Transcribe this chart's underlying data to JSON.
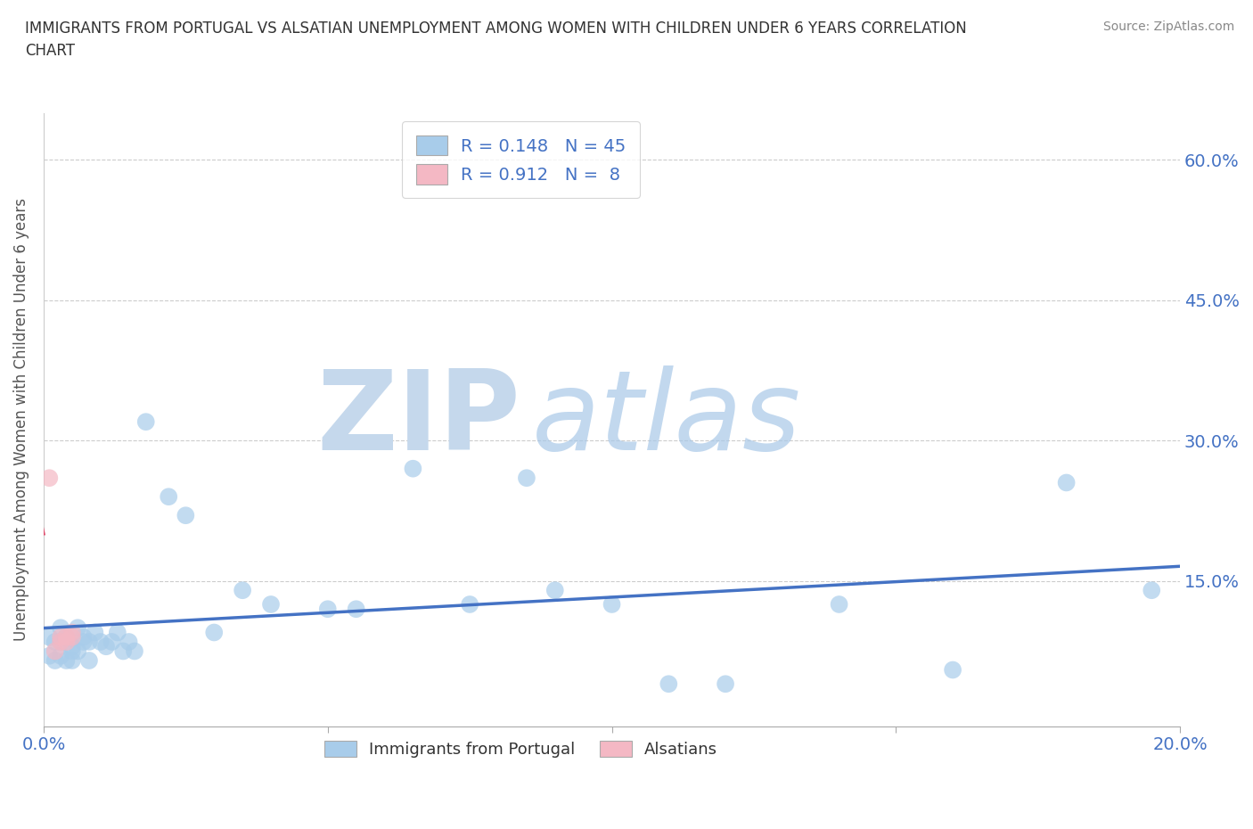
{
  "title": "IMMIGRANTS FROM PORTUGAL VS ALSATIAN UNEMPLOYMENT AMONG WOMEN WITH CHILDREN UNDER 6 YEARS CORRELATION\nCHART",
  "source": "Source: ZipAtlas.com",
  "ylabel": "Unemployment Among Women with Children Under 6 years",
  "xlim": [
    0.0,
    0.2
  ],
  "ylim": [
    -0.005,
    0.65
  ],
  "blue_R": 0.148,
  "blue_N": 45,
  "pink_R": 0.912,
  "pink_N": 8,
  "blue_color": "#a8ccea",
  "pink_color": "#f4b8c4",
  "blue_line_color": "#4472c4",
  "pink_line_color": "#e05070",
  "watermark_zip": "ZIP",
  "watermark_atlas": "atlas",
  "watermark_color_zip": "#c5d8ec",
  "watermark_color_atlas": "#a8c8e8",
  "blue_scatter_x": [
    0.001,
    0.001,
    0.002,
    0.002,
    0.003,
    0.003,
    0.003,
    0.004,
    0.004,
    0.005,
    0.005,
    0.005,
    0.006,
    0.006,
    0.007,
    0.007,
    0.008,
    0.008,
    0.009,
    0.01,
    0.011,
    0.012,
    0.013,
    0.014,
    0.015,
    0.016,
    0.018,
    0.022,
    0.025,
    0.03,
    0.035,
    0.04,
    0.05,
    0.055,
    0.065,
    0.075,
    0.085,
    0.09,
    0.1,
    0.11,
    0.12,
    0.14,
    0.16,
    0.18,
    0.195
  ],
  "blue_scatter_y": [
    0.09,
    0.07,
    0.085,
    0.065,
    0.1,
    0.085,
    0.07,
    0.09,
    0.065,
    0.08,
    0.075,
    0.065,
    0.1,
    0.075,
    0.09,
    0.085,
    0.065,
    0.085,
    0.095,
    0.085,
    0.08,
    0.085,
    0.095,
    0.075,
    0.085,
    0.075,
    0.32,
    0.24,
    0.22,
    0.095,
    0.14,
    0.125,
    0.12,
    0.12,
    0.27,
    0.125,
    0.26,
    0.14,
    0.125,
    0.04,
    0.04,
    0.125,
    0.055,
    0.255,
    0.14
  ],
  "pink_scatter_x": [
    0.001,
    0.002,
    0.003,
    0.003,
    0.004,
    0.004,
    0.005,
    0.005
  ],
  "pink_scatter_y": [
    0.26,
    0.075,
    0.085,
    0.09,
    0.085,
    0.09,
    0.09,
    0.095
  ]
}
